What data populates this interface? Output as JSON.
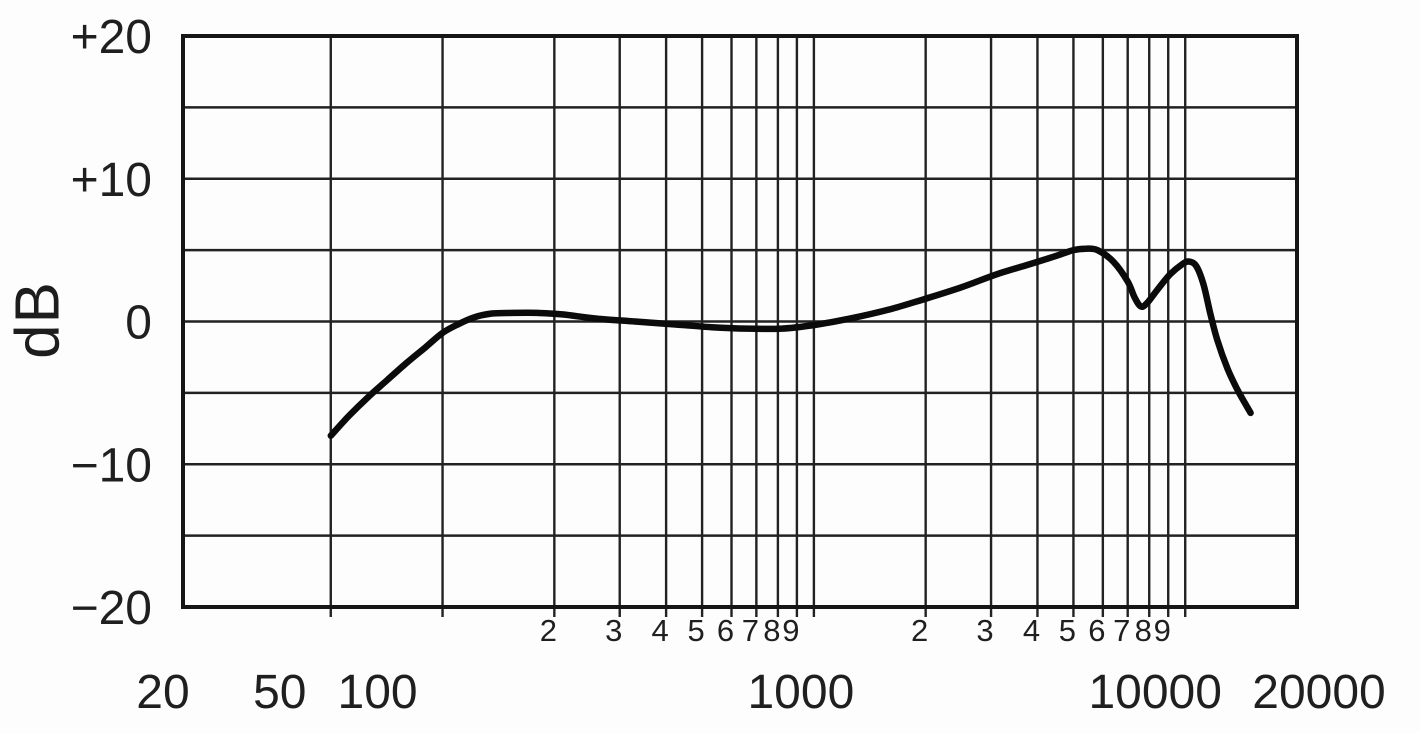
{
  "page": {
    "background": "#fdfdfd",
    "text_color": "#1f1f1f",
    "grid_color": "#222222",
    "curve_color": "#0b0b0b"
  },
  "chart_data": {
    "type": "line",
    "title": "",
    "xlabel": "",
    "ylabel": "dB",
    "x_scale": "log",
    "x_unit": "Hz",
    "xlim": [
      20,
      20000
    ],
    "ylim": [
      -20,
      20
    ],
    "grid": true,
    "y_gridline_step_db": 5,
    "y_tick_labels": [
      {
        "db": 20,
        "label": "+20"
      },
      {
        "db": 10,
        "label": "+10"
      },
      {
        "db": 0,
        "label": "0"
      },
      {
        "db": -10,
        "label": "−10"
      },
      {
        "db": -20,
        "label": "−20"
      }
    ],
    "x_major_labels": [
      {
        "hz": 20,
        "label": "20"
      },
      {
        "hz": 50,
        "label": "50"
      },
      {
        "hz": 100,
        "label": "100"
      },
      {
        "hz": 1000,
        "label": "1000"
      },
      {
        "hz": 10000,
        "label": "10000"
      },
      {
        "hz": 20000,
        "label": "20000"
      }
    ],
    "x_minor_labels": [
      {
        "hz": 200,
        "label": "2"
      },
      {
        "hz": 300,
        "label": "3"
      },
      {
        "hz": 400,
        "label": "4"
      },
      {
        "hz": 500,
        "label": "5"
      },
      {
        "hz": 600,
        "label": "6"
      },
      {
        "hz": 700,
        "label": "7"
      },
      {
        "hz": 800,
        "label": "8"
      },
      {
        "hz": 900,
        "label": "9"
      },
      {
        "hz": 2000,
        "label": "2"
      },
      {
        "hz": 3000,
        "label": "3"
      },
      {
        "hz": 4000,
        "label": "4"
      },
      {
        "hz": 5000,
        "label": "5"
      },
      {
        "hz": 6000,
        "label": "6"
      },
      {
        "hz": 7000,
        "label": "7"
      },
      {
        "hz": 8000,
        "label": "8"
      },
      {
        "hz": 9000,
        "label": "9"
      }
    ],
    "x_gridlines_hz": [
      50,
      100,
      200,
      300,
      400,
      500,
      600,
      700,
      800,
      900,
      1000,
      2000,
      3000,
      4000,
      5000,
      6000,
      7000,
      8000,
      9000,
      10000
    ],
    "series": [
      {
        "name": "frequency-response",
        "color": "#0b0b0b",
        "points_hz_db": [
          [
            50,
            -8.0
          ],
          [
            56,
            -6.6
          ],
          [
            63,
            -5.3
          ],
          [
            71,
            -4.1
          ],
          [
            80,
            -2.9
          ],
          [
            90,
            -1.8
          ],
          [
            100,
            -0.8
          ],
          [
            110,
            -0.2
          ],
          [
            122,
            0.3
          ],
          [
            135,
            0.55
          ],
          [
            155,
            0.6
          ],
          [
            180,
            0.6
          ],
          [
            210,
            0.5
          ],
          [
            260,
            0.2
          ],
          [
            330,
            0.0
          ],
          [
            420,
            -0.2
          ],
          [
            530,
            -0.4
          ],
          [
            660,
            -0.5
          ],
          [
            820,
            -0.5
          ],
          [
            1000,
            -0.25
          ],
          [
            1250,
            0.2
          ],
          [
            1600,
            0.85
          ],
          [
            2000,
            1.6
          ],
          [
            2500,
            2.4
          ],
          [
            3100,
            3.3
          ],
          [
            3800,
            4.0
          ],
          [
            4500,
            4.6
          ],
          [
            5000,
            5.0
          ],
          [
            5400,
            5.1
          ],
          [
            5800,
            5.0
          ],
          [
            6400,
            4.2
          ],
          [
            7000,
            2.8
          ],
          [
            7300,
            1.7
          ],
          [
            7600,
            1.05
          ],
          [
            7900,
            1.3
          ],
          [
            8400,
            2.2
          ],
          [
            9100,
            3.3
          ],
          [
            9800,
            4.0
          ],
          [
            10200,
            4.2
          ],
          [
            10700,
            3.9
          ],
          [
            11200,
            2.6
          ],
          [
            11700,
            0.5
          ],
          [
            12200,
            -1.3
          ],
          [
            13000,
            -3.3
          ],
          [
            13900,
            -4.9
          ],
          [
            15000,
            -6.4
          ]
        ]
      }
    ]
  }
}
